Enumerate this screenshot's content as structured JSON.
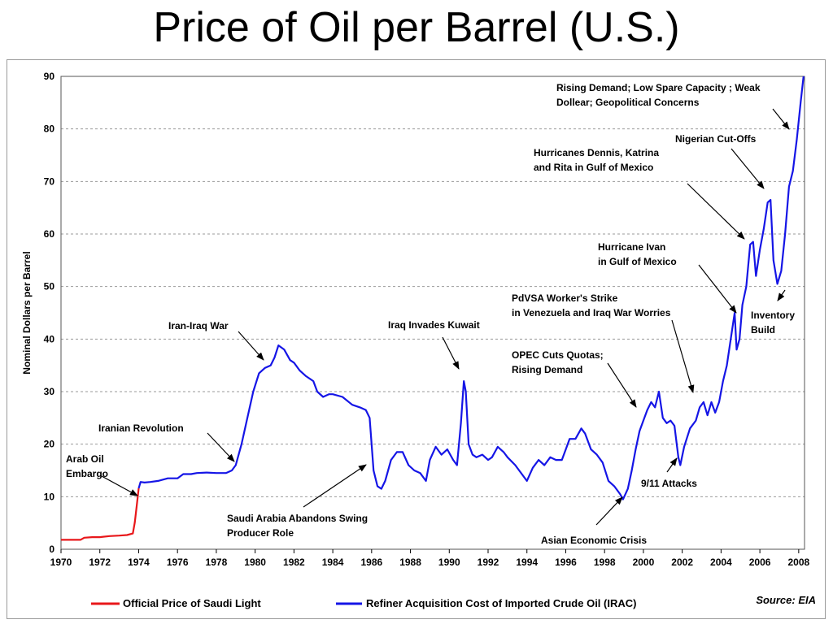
{
  "slide": {
    "title": "Price of Oil per Barrel (U.S.)"
  },
  "chart_data": {
    "type": "line",
    "title": "Price of Oil per Barrel (U.S.)",
    "xlabel": "",
    "ylabel": "Nominal Dollars per Barrel",
    "xlim": [
      1970,
      2008.3
    ],
    "ylim": [
      0,
      90
    ],
    "grid": true,
    "x_ticks": [
      "1970",
      "1972",
      "1974",
      "1976",
      "1978",
      "1980",
      "1982",
      "1984",
      "1986",
      "1988",
      "1990",
      "1992",
      "1994",
      "1996",
      "1998",
      "2000",
      "2002",
      "2004",
      "2006",
      "2008"
    ],
    "y_ticks": [
      "0",
      "10",
      "20",
      "30",
      "40",
      "50",
      "60",
      "70",
      "80",
      "90"
    ],
    "legend_placement": "bottom",
    "source": "Source: EIA",
    "colors": {
      "saudi": "#e8171a",
      "irac": "#1515e6",
      "grid": "#9a9a9a"
    },
    "series": [
      {
        "name": "Official Price of Saudi Light",
        "color": "#e8171a",
        "x": [
          1970.0,
          1970.5,
          1971.0,
          1971.2,
          1971.6,
          1972.0,
          1972.5,
          1973.0,
          1973.4,
          1973.7,
          1973.8,
          1973.9,
          1974.0
        ],
        "y": [
          1.8,
          1.8,
          1.8,
          2.2,
          2.3,
          2.3,
          2.5,
          2.6,
          2.7,
          3.0,
          5.1,
          8.3,
          11.6
        ]
      },
      {
        "name": "Refiner Acquisition Cost of Imported Crude Oil (IRAC)",
        "color": "#1515e6",
        "x": [
          1974.0,
          1974.1,
          1974.3,
          1974.6,
          1975.0,
          1975.5,
          1976.0,
          1976.3,
          1976.7,
          1977.0,
          1977.5,
          1978.0,
          1978.5,
          1978.8,
          1979.0,
          1979.3,
          1979.6,
          1979.9,
          1980.2,
          1980.5,
          1980.8,
          1981.0,
          1981.2,
          1981.5,
          1981.8,
          1982.0,
          1982.3,
          1982.6,
          1983.0,
          1983.2,
          1983.5,
          1983.8,
          1984.0,
          1984.5,
          1985.0,
          1985.4,
          1985.7,
          1985.9,
          1986.1,
          1986.3,
          1986.5,
          1986.7,
          1987.0,
          1987.3,
          1987.6,
          1987.9,
          1988.2,
          1988.5,
          1988.8,
          1989.0,
          1989.3,
          1989.6,
          1989.9,
          1990.2,
          1990.4,
          1990.6,
          1990.75,
          1990.85,
          1991.0,
          1991.2,
          1991.4,
          1991.7,
          1992.0,
          1992.2,
          1992.5,
          1992.8,
          1993.0,
          1993.4,
          1993.8,
          1994.0,
          1994.3,
          1994.6,
          1994.9,
          1995.2,
          1995.5,
          1995.8,
          1996.0,
          1996.2,
          1996.5,
          1996.8,
          1997.0,
          1997.3,
          1997.6,
          1997.9,
          1998.2,
          1998.5,
          1998.8,
          1998.95,
          1999.2,
          1999.4,
          1999.6,
          1999.8,
          2000.0,
          2000.2,
          2000.4,
          2000.6,
          2000.8,
          2001.0,
          2001.2,
          2001.4,
          2001.6,
          2001.8,
          2001.9,
          2002.1,
          2002.4,
          2002.7,
          2002.9,
          2003.1,
          2003.3,
          2003.5,
          2003.7,
          2003.9,
          2004.1,
          2004.3,
          2004.5,
          2004.7,
          2004.8,
          2004.95,
          2005.1,
          2005.3,
          2005.5,
          2005.65,
          2005.8,
          2006.0,
          2006.2,
          2006.4,
          2006.55,
          2006.7,
          2006.9,
          2007.1,
          2007.3,
          2007.5,
          2007.7,
          2007.9,
          2008.1,
          2008.25
        ],
        "y": [
          11.6,
          12.8,
          12.7,
          12.8,
          13.0,
          13.5,
          13.5,
          14.3,
          14.3,
          14.5,
          14.6,
          14.5,
          14.5,
          15.0,
          16.0,
          20.0,
          25.0,
          30.0,
          33.5,
          34.5,
          35.0,
          36.5,
          38.8,
          38.0,
          36.0,
          35.5,
          34.0,
          33.0,
          32.0,
          30.0,
          29.0,
          29.5,
          29.5,
          29.0,
          27.5,
          27.0,
          26.5,
          25.0,
          15.0,
          12.0,
          11.5,
          13.0,
          17.0,
          18.5,
          18.5,
          16.0,
          15.0,
          14.5,
          13.0,
          17.0,
          19.5,
          18.0,
          19.0,
          17.0,
          16.0,
          24.0,
          32.0,
          30.0,
          20.0,
          18.0,
          17.5,
          18.0,
          17.0,
          17.5,
          19.5,
          18.5,
          17.5,
          16.0,
          14.0,
          13.0,
          15.5,
          17.0,
          16.0,
          17.5,
          17.0,
          17.0,
          19.0,
          21.0,
          21.0,
          23.0,
          22.0,
          19.0,
          18.0,
          16.5,
          13.0,
          12.0,
          10.5,
          9.5,
          11.5,
          15.0,
          19.0,
          22.5,
          24.5,
          26.5,
          28.0,
          27.0,
          30.0,
          25.0,
          24.0,
          24.5,
          23.5,
          17.5,
          16.0,
          19.5,
          23.0,
          24.5,
          27.0,
          28.0,
          25.5,
          28.0,
          26.0,
          28.0,
          32.0,
          35.0,
          40.0,
          45.0,
          38.0,
          40.0,
          46.5,
          50.0,
          58.0,
          58.5,
          52.0,
          57.0,
          61.0,
          66.0,
          66.5,
          55.0,
          50.5,
          53.0,
          60.0,
          69.0,
          72.0,
          78.0,
          85.0,
          90.0
        ]
      }
    ],
    "annotations": [
      {
        "lines": [
          "Arab Oil",
          "Embargo"
        ]
      },
      {
        "lines": [
          "Iranian Revolution"
        ]
      },
      {
        "lines": [
          "Iran-Iraq War"
        ]
      },
      {
        "lines": [
          "Saudi Arabia Abandons Swing",
          "Producer Role"
        ]
      },
      {
        "lines": [
          "Iraq Invades Kuwait"
        ]
      },
      {
        "lines": [
          "OPEC Cuts Quotas;",
          " Rising Demand"
        ]
      },
      {
        "lines": [
          "Asian Economic Crisis"
        ]
      },
      {
        "lines": [
          "PdVSA Worker's Strike",
          "in Venezuela and Iraq War Worries"
        ]
      },
      {
        "lines": [
          "9/11 Attacks"
        ]
      },
      {
        "lines": [
          "Hurricane Ivan",
          "in Gulf of Mexico"
        ]
      },
      {
        "lines": [
          "Hurricanes Dennis, Katrina",
          "and Rita in Gulf of Mexico"
        ]
      },
      {
        "lines": [
          "Nigerian Cut-Offs"
        ]
      },
      {
        "lines": [
          "Rising Demand; Low Spare Capacity ; Weak",
          "Dollear; Geopolitical Concerns"
        ]
      },
      {
        "lines": [
          "Inventory",
          "Build"
        ]
      }
    ]
  }
}
